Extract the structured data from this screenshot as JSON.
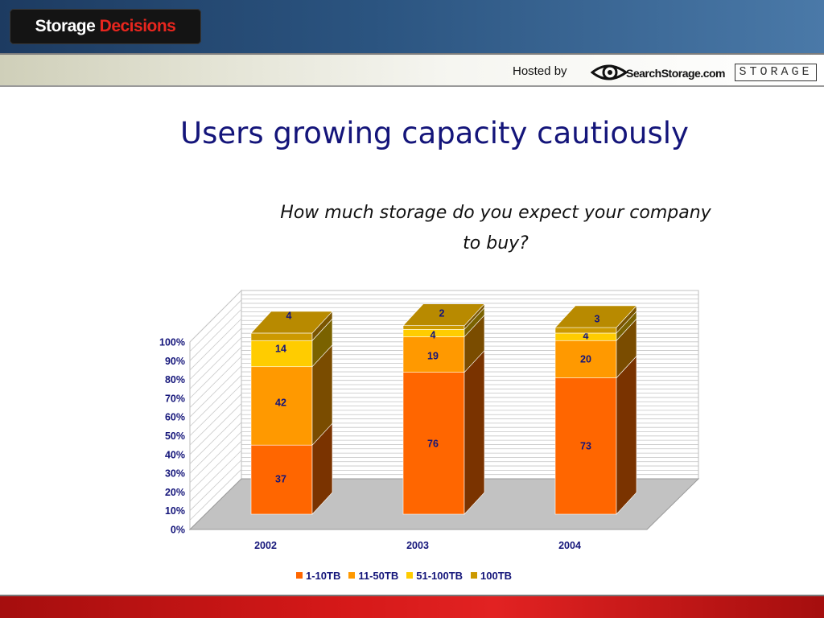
{
  "header": {
    "logo_part1": "Storage",
    "logo_part2": "Decisions",
    "hosted_by": "Hosted by",
    "sponsor1": "SearchStorage.com",
    "sponsor2": "STORAGE"
  },
  "slide": {
    "title": "Users growing capacity cautiously",
    "question_line1": "How much storage do you expect your company",
    "question_line2": "to buy?"
  },
  "colors": {
    "title": "#14157a",
    "series": [
      "#ff6600",
      "#ff9900",
      "#ffcc00",
      "#cc9900"
    ],
    "series_side": [
      "#7a3300",
      "#7a4c00",
      "#7a6200",
      "#7a5500"
    ],
    "series_top": [
      "#ff9a55",
      "#ffb84d",
      "#ffe066",
      "#b88a00"
    ],
    "header_red": "#e8261e"
  },
  "chart_data": {
    "type": "bar",
    "stacked": true,
    "normalized": true,
    "three_d": true,
    "categories": [
      "2002",
      "2003",
      "2004"
    ],
    "series": [
      {
        "name": "1-10TB",
        "values": [
          37,
          76,
          73
        ]
      },
      {
        "name": "11-50TB",
        "values": [
          42,
          19,
          20
        ]
      },
      {
        "name": "51-100TB",
        "values": [
          14,
          4,
          4
        ]
      },
      {
        "name": "100TB",
        "values": [
          4,
          2,
          3
        ]
      }
    ],
    "yticks": [
      "0%",
      "10%",
      "20%",
      "30%",
      "40%",
      "50%",
      "60%",
      "70%",
      "80%",
      "90%",
      "100%"
    ],
    "ylim": [
      0,
      100
    ],
    "grid": true,
    "legend": "bottom"
  }
}
